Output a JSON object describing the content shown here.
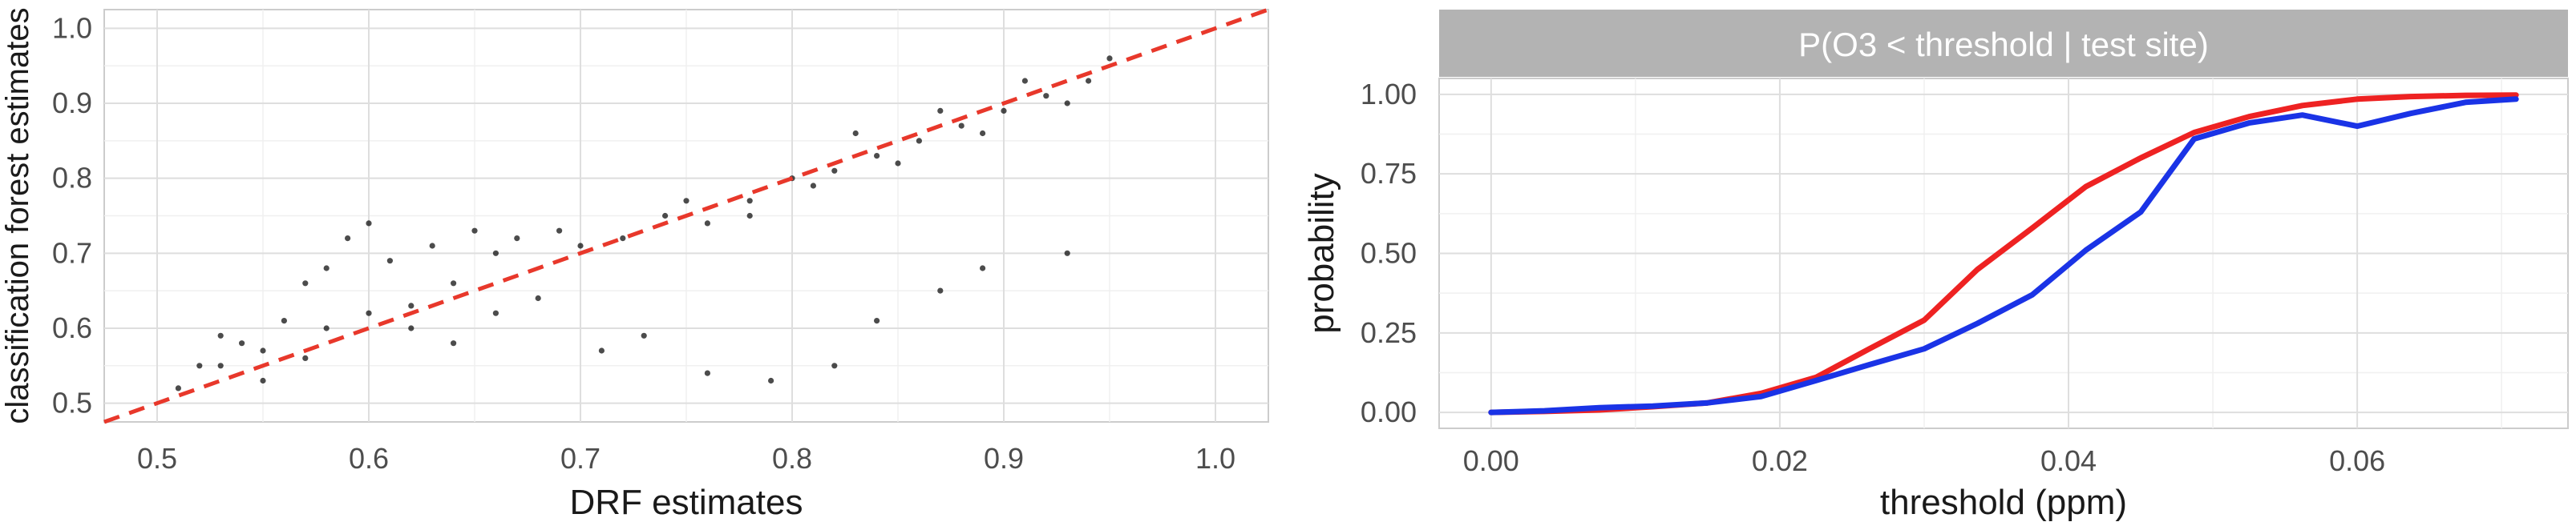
{
  "chart_data": [
    {
      "type": "scatter",
      "title": "",
      "xlabel": "DRF estimates",
      "ylabel": "classification forest estimates",
      "xlim": [
        0.475,
        1.025
      ],
      "ylim": [
        0.475,
        1.025
      ],
      "x_ticks": [
        "0.5",
        "0.6",
        "0.7",
        "0.8",
        "0.9",
        "1.0"
      ],
      "y_ticks": [
        "0.5",
        "0.6",
        "0.7",
        "0.8",
        "0.9",
        "1.0"
      ],
      "x_tick_values": [
        0.5,
        0.6,
        0.7,
        0.8,
        0.9,
        1.0
      ],
      "y_tick_values": [
        0.5,
        0.6,
        0.7,
        0.8,
        0.9,
        1.0
      ],
      "grid": true,
      "reference_line": {
        "slope": 1,
        "intercept": 0,
        "style": "dashed",
        "color": "#e8382b"
      },
      "point_color": "#000000",
      "points": [
        [
          0.51,
          0.52
        ],
        [
          0.52,
          0.55
        ],
        [
          0.53,
          0.59
        ],
        [
          0.54,
          0.58
        ],
        [
          0.55,
          0.53
        ],
        [
          0.56,
          0.61
        ],
        [
          0.57,
          0.66
        ],
        [
          0.58,
          0.68
        ],
        [
          0.59,
          0.72
        ],
        [
          0.6,
          0.74
        ],
        [
          0.61,
          0.69
        ],
        [
          0.62,
          0.63
        ],
        [
          0.63,
          0.71
        ],
        [
          0.64,
          0.66
        ],
        [
          0.65,
          0.73
        ],
        [
          0.66,
          0.7
        ],
        [
          0.67,
          0.72
        ],
        [
          0.68,
          0.64
        ],
        [
          0.69,
          0.73
        ],
        [
          0.7,
          0.71
        ],
        [
          0.53,
          0.55
        ],
        [
          0.55,
          0.57
        ],
        [
          0.57,
          0.56
        ],
        [
          0.58,
          0.6
        ],
        [
          0.6,
          0.62
        ],
        [
          0.62,
          0.6
        ],
        [
          0.64,
          0.58
        ],
        [
          0.66,
          0.62
        ],
        [
          0.71,
          0.57
        ],
        [
          0.73,
          0.59
        ],
        [
          0.76,
          0.54
        ],
        [
          0.79,
          0.53
        ],
        [
          0.82,
          0.55
        ],
        [
          0.84,
          0.61
        ],
        [
          0.87,
          0.65
        ],
        [
          0.89,
          0.68
        ],
        [
          0.93,
          0.7
        ],
        [
          0.74,
          0.75
        ],
        [
          0.76,
          0.74
        ],
        [
          0.78,
          0.77
        ],
        [
          0.8,
          0.8
        ],
        [
          0.82,
          0.81
        ],
        [
          0.84,
          0.83
        ],
        [
          0.86,
          0.85
        ],
        [
          0.88,
          0.87
        ],
        [
          0.9,
          0.89
        ],
        [
          0.92,
          0.91
        ],
        [
          0.94,
          0.93
        ],
        [
          0.95,
          0.96
        ],
        [
          0.72,
          0.72
        ],
        [
          0.75,
          0.77
        ],
        [
          0.78,
          0.75
        ],
        [
          0.81,
          0.79
        ],
        [
          0.83,
          0.86
        ],
        [
          0.85,
          0.82
        ],
        [
          0.87,
          0.89
        ],
        [
          0.89,
          0.86
        ],
        [
          0.91,
          0.93
        ],
        [
          0.93,
          0.9
        ]
      ]
    },
    {
      "type": "line",
      "title": "",
      "facet_label": "P(O3 < threshold | test site)",
      "xlabel": "threshold (ppm)",
      "ylabel": "probability",
      "xlim": [
        -0.0036,
        0.0746
      ],
      "ylim": [
        -0.05,
        1.05
      ],
      "x_ticks": [
        "0.00",
        "0.02",
        "0.04",
        "0.06"
      ],
      "y_ticks": [
        "0.00",
        "0.25",
        "0.50",
        "0.75",
        "1.00"
      ],
      "x_tick_values": [
        0.0,
        0.02,
        0.04,
        0.06
      ],
      "y_tick_values": [
        0.0,
        0.25,
        0.5,
        0.75,
        1.0
      ],
      "grid": true,
      "x": [
        0.0,
        0.0037,
        0.0075,
        0.0112,
        0.015,
        0.0187,
        0.0225,
        0.0262,
        0.03,
        0.0337,
        0.0375,
        0.0412,
        0.045,
        0.0487,
        0.0525,
        0.0562,
        0.06,
        0.0637,
        0.0675,
        0.071
      ],
      "series": [
        {
          "color": "#ee2222",
          "values": [
            0.0,
            0.003,
            0.008,
            0.018,
            0.03,
            0.06,
            0.11,
            0.2,
            0.29,
            0.45,
            0.58,
            0.71,
            0.8,
            0.88,
            0.93,
            0.965,
            0.985,
            0.993,
            0.997,
            0.998
          ]
        },
        {
          "color": "#1a33e6",
          "values": [
            0.0,
            0.005,
            0.015,
            0.02,
            0.03,
            0.05,
            0.1,
            0.15,
            0.2,
            0.28,
            0.37,
            0.51,
            0.63,
            0.86,
            0.91,
            0.935,
            0.9,
            0.94,
            0.975,
            0.985
          ]
        }
      ]
    }
  ]
}
